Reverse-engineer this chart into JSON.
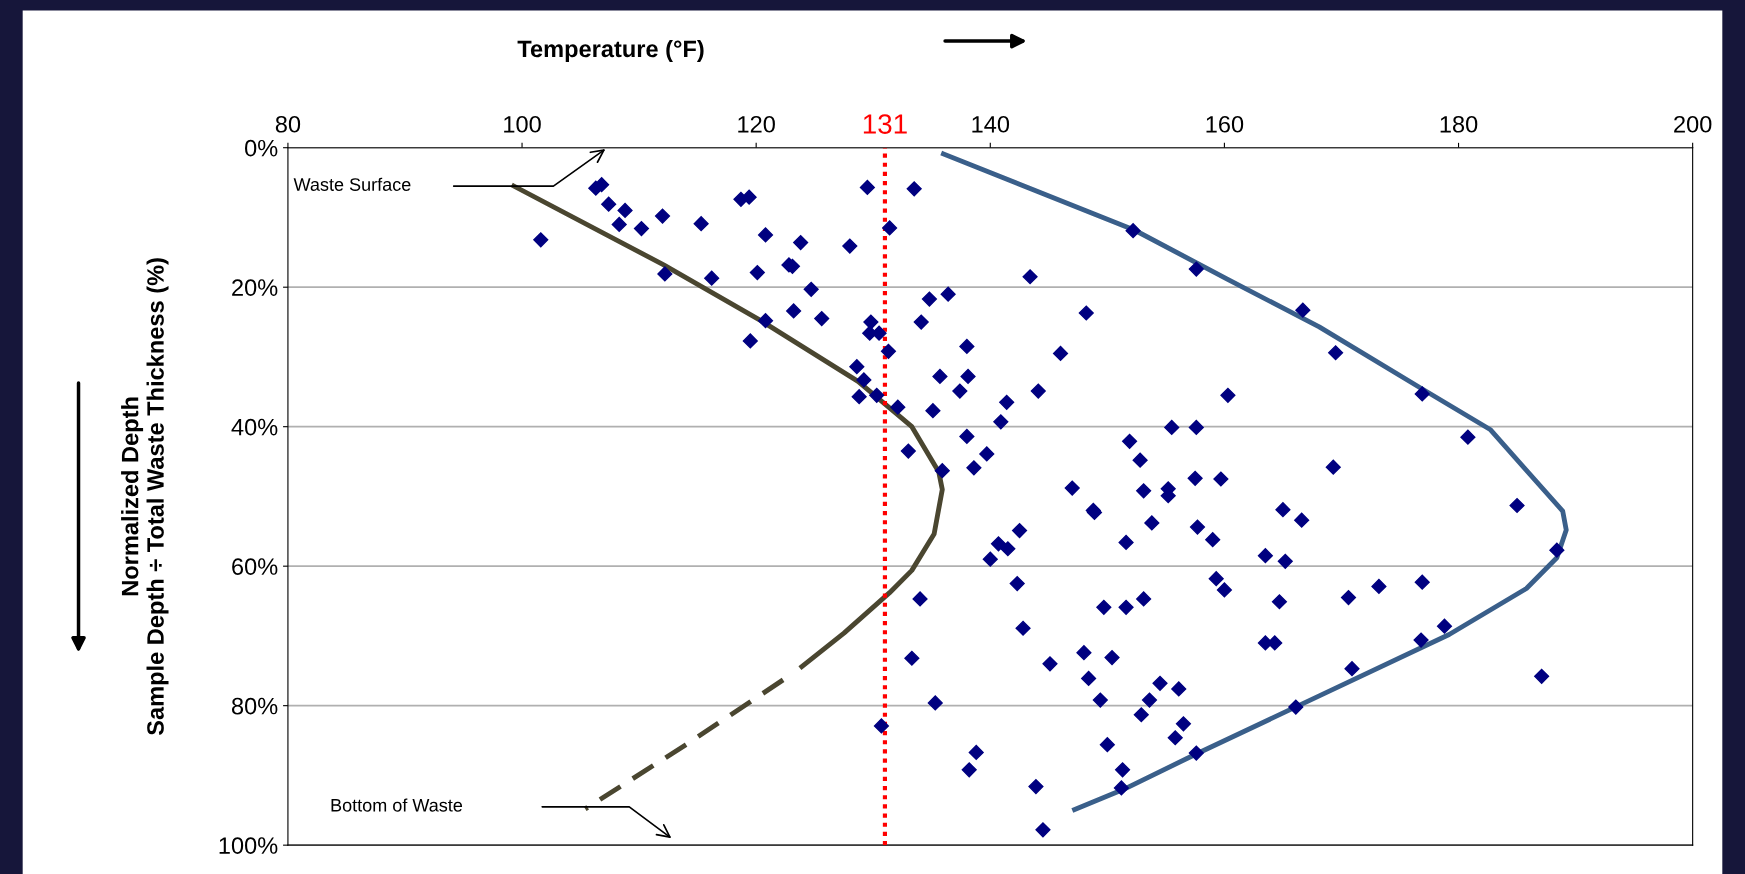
{
  "chart_data": {
    "type": "scatter",
    "xlabel": "Temperature (°F)",
    "ylabel": "Normalized Depth\nSample Depth ÷ Total Waste Thickness (%)",
    "xlim": [
      80,
      200
    ],
    "xticks": [
      80,
      100,
      120,
      140,
      160,
      180,
      200
    ],
    "ylim": [
      100,
      0
    ],
    "yticks": [
      {
        "value": 0,
        "label": "0%"
      },
      {
        "value": 20,
        "label": "20%"
      },
      {
        "value": 40,
        "label": "40%"
      },
      {
        "value": 60,
        "label": "60%"
      },
      {
        "value": 80,
        "label": "80%"
      },
      {
        "value": 100,
        "label": "100%"
      }
    ],
    "grid": "y",
    "legend": false,
    "series": [
      {
        "color": "#000080",
        "marker": "diamond",
        "x": [
          101.6,
          106.3,
          106.8,
          107.4,
          108.8,
          108.3,
          110.2,
          112.0,
          115.3,
          112.2,
          116.2,
          118.7,
          119.4,
          120.8,
          123.8,
          120.1,
          122.8,
          123.1,
          128.0,
          124.7,
          120.8,
          123.2,
          125.6,
          119.5,
          129.5,
          133.5,
          131.4,
          129.8,
          129.7,
          130.5,
          131.3,
          128.6,
          129.2,
          128.8,
          130.3,
          132.1,
          135.1,
          134.8,
          136.4,
          134.1,
          138.0,
          135.7,
          138.1,
          137.4,
          133.0,
          138.0,
          135.9,
          138.6,
          139.7,
          152.2,
          157.6,
          143.4,
          166.7,
          148.2,
          169.5,
          146.0,
          141.4,
          140.9,
          144.1,
          160.3,
          176.9,
          180.8,
          151.9,
          155.5,
          157.6,
          152.8,
          169.3,
          147.0,
          153.1,
          155.2,
          155.2,
          157.5,
          159.7,
          148.8,
          165.0,
          185.0,
          148.9,
          166.6,
          142.5,
          140.7,
          141.5,
          140.0,
          151.6,
          153.8,
          157.7,
          159.0,
          163.5,
          165.2,
          188.4,
          159.3,
          160.0,
          142.3,
          134.0,
          149.7,
          151.6,
          153.1,
          164.7,
          170.6,
          173.2,
          176.9,
          178.8,
          176.8,
          163.5,
          164.3,
          142.8,
          133.3,
          148.0,
          150.4,
          145.1,
          148.4,
          154.5,
          156.1,
          149.4,
          153.6,
          152.9,
          170.9,
          187.1,
          135.3,
          166.1,
          156.5,
          155.8,
          150.0,
          157.6,
          138.8,
          138.2,
          151.3,
          151.2,
          143.9,
          144.5,
          130.7
        ],
        "values": [
          13.2,
          5.8,
          5.3,
          8.1,
          9.0,
          11.0,
          11.6,
          9.8,
          10.9,
          18.1,
          18.7,
          7.4,
          7.1,
          12.5,
          13.6,
          17.9,
          16.8,
          17.0,
          14.1,
          20.3,
          24.8,
          23.4,
          24.5,
          27.7,
          5.7,
          5.9,
          11.5,
          25.0,
          26.6,
          26.6,
          29.2,
          31.4,
          33.3,
          35.7,
          35.5,
          37.2,
          37.7,
          21.7,
          21.0,
          25.0,
          28.5,
          32.8,
          32.8,
          34.9,
          43.5,
          41.4,
          46.3,
          45.9,
          43.9,
          11.9,
          17.4,
          18.5,
          23.3,
          23.7,
          29.4,
          29.5,
          36.5,
          39.3,
          34.9,
          35.5,
          35.3,
          41.5,
          42.1,
          40.1,
          40.1,
          44.8,
          45.8,
          48.8,
          49.2,
          48.9,
          49.9,
          47.4,
          47.5,
          52.0,
          51.9,
          51.3,
          52.3,
          53.4,
          54.9,
          56.8,
          57.5,
          59.0,
          56.6,
          53.8,
          54.4,
          56.2,
          58.5,
          59.3,
          57.7,
          61.8,
          63.4,
          62.5,
          64.7,
          65.9,
          65.9,
          64.7,
          65.1,
          64.5,
          62.9,
          62.3,
          68.6,
          70.6,
          71.0,
          71.0,
          68.9,
          73.2,
          72.4,
          73.1,
          74.0,
          76.1,
          76.8,
          77.6,
          79.2,
          79.2,
          81.3,
          74.7,
          75.8,
          79.6,
          80.2,
          82.6,
          84.6,
          85.6,
          86.8,
          86.7,
          89.2,
          89.2,
          91.8,
          91.6,
          97.8,
          82.9
        ]
      },
      {
        "type": "line",
        "color": "#4a4630",
        "line_style": "solid",
        "x": [
          99.3,
          112.1,
          120.4,
          128.7,
          133.3,
          135.6,
          135.9,
          135.2,
          133.3,
          131.4,
          127.5,
          123.9
        ],
        "values": [
          5.5,
          16.8,
          24.8,
          33.5,
          40.0,
          46.5,
          49.0,
          55.4,
          60.6,
          63.8,
          69.6,
          74.4
        ]
      },
      {
        "type": "line",
        "color": "#4a4630",
        "line_style": "dashed",
        "x": [
          122.3,
          114.0,
          105.4
        ],
        "values": [
          76.3,
          85.6,
          94.8
        ]
      },
      {
        "type": "line",
        "color": "#3a5f8a",
        "line_style": "solid",
        "x": [
          136.0,
          152.3,
          160.2,
          168.1,
          176.9,
          182.7,
          188.9,
          189.2,
          188.4,
          185.8,
          179.2,
          168.1,
          157.5,
          151.4,
          147.2
        ],
        "values": [
          0.9,
          11.8,
          18.8,
          25.7,
          34.6,
          40.4,
          52.1,
          54.8,
          58.8,
          63.2,
          69.8,
          78.6,
          87.0,
          92.0,
          94.9
        ]
      }
    ],
    "ref_lines": [
      {
        "axis": "x",
        "value": 131,
        "label": "131",
        "color": "#ff0000",
        "line_style": "dotted"
      }
    ],
    "annotations": [
      "Waste Surface",
      "Bottom of Waste"
    ]
  }
}
